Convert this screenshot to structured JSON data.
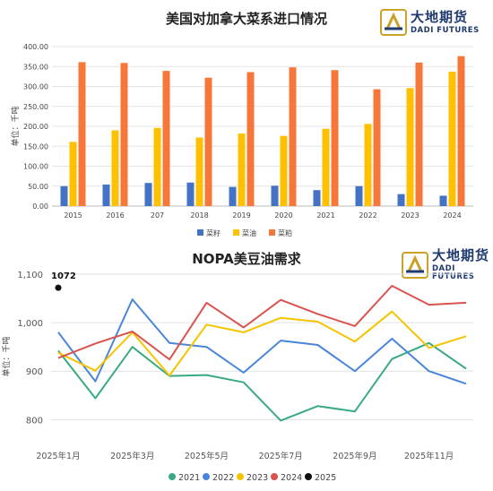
{
  "logo": {
    "cn": "大地期货",
    "en": "DADI FUTURES"
  },
  "chart_data": [
    {
      "type": "bar",
      "title": "美国对加拿大菜系进口情况",
      "ylabel": "单位：千吨",
      "xlabel": "",
      "ylim": [
        0,
        400
      ],
      "yticks": [
        "0.00",
        "50.00",
        "100.00",
        "150.00",
        "200.00",
        "250.00",
        "300.00",
        "350.00",
        "400.00"
      ],
      "categories": [
        "2015",
        "2016",
        "207",
        "2018",
        "2019",
        "2020",
        "2021",
        "2022",
        "2023",
        "2024"
      ],
      "series": [
        {
          "name": "菜籽",
          "color": "#4472c4",
          "values": [
            50,
            54,
            58,
            59,
            48,
            51,
            40,
            50,
            30,
            26
          ]
        },
        {
          "name": "菜油",
          "color": "#ffc000",
          "values": [
            161,
            190,
            196,
            172,
            182,
            176,
            194,
            206,
            296,
            337
          ]
        },
        {
          "name": "菜粕",
          "color": "#f7773a",
          "values": [
            361,
            359,
            339,
            322,
            336,
            348,
            341,
            293,
            360,
            376
          ]
        }
      ],
      "grid": true,
      "legend": "bottom"
    },
    {
      "type": "line",
      "title": "NOPA美豆油需求",
      "ylabel": "单位：千吨",
      "xlabel": "",
      "ylim": [
        760,
        1100
      ],
      "yticks": [
        "800",
        "900",
        "1,000",
        "1,100"
      ],
      "xticks": [
        "2025年1月",
        "2025年3月",
        "2025年5月",
        "2025年7月",
        "2025年9月",
        "2025年11月"
      ],
      "months": 12,
      "series": [
        {
          "name": "2021",
          "color": "#3aaa80",
          "values": [
            942,
            844,
            950,
            890,
            892,
            877,
            798,
            828,
            817,
            925,
            958,
            905
          ]
        },
        {
          "name": "2022",
          "color": "#4a86d8",
          "values": [
            980,
            879,
            1048,
            958,
            950,
            897,
            963,
            954,
            900,
            967,
            900,
            874
          ]
        },
        {
          "name": "2023",
          "color": "#f5c400",
          "values": [
            938,
            901,
            980,
            891,
            996,
            980,
            1010,
            1002,
            961,
            1023,
            948,
            972
          ]
        },
        {
          "name": "2024",
          "color": "#d9534f",
          "values": [
            927,
            957,
            982,
            924,
            1041,
            990,
            1047,
            1018,
            993,
            1076,
            1037,
            1041
          ]
        },
        {
          "name": "2025",
          "color": "#111111",
          "values": [
            1072
          ]
        }
      ],
      "annotations": [
        {
          "text": "1072",
          "series": "2025",
          "month": 1
        }
      ],
      "grid": true,
      "legend": "bottom"
    }
  ]
}
